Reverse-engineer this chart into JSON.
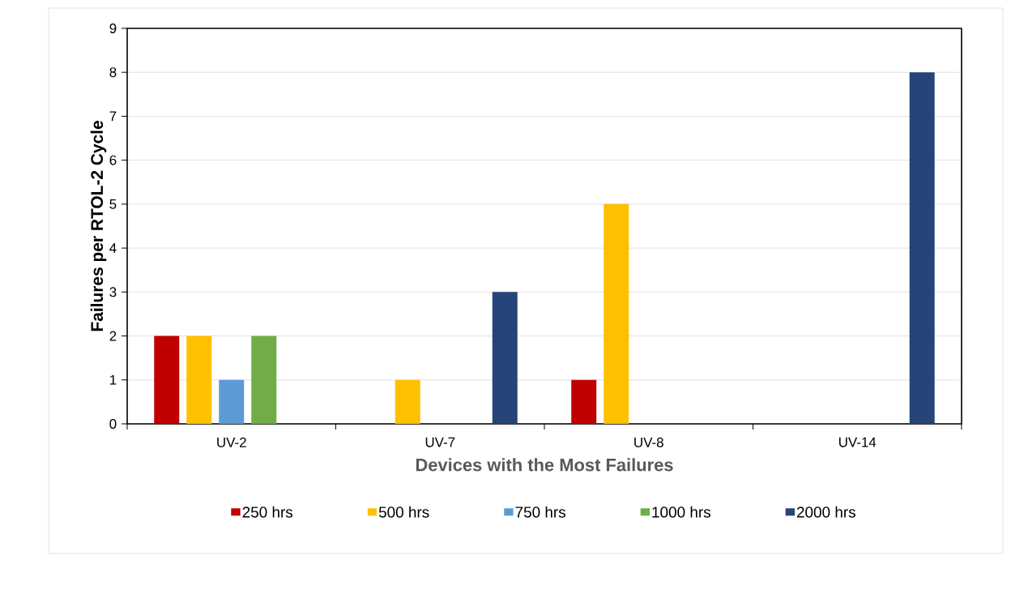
{
  "chart_data": {
    "type": "bar",
    "xlabel": "Devices with the Most Failures",
    "ylabel": "Failures per RTOL-2 Cycle",
    "categories": [
      "UV-2",
      "UV-7",
      "UV-8",
      "UV-14"
    ],
    "series": [
      {
        "name": "250 hrs",
        "color": "#c00000",
        "values": [
          2,
          0,
          1,
          0
        ]
      },
      {
        "name": "500 hrs",
        "color": "#ffc000",
        "values": [
          2,
          1,
          5,
          0
        ]
      },
      {
        "name": "750 hrs",
        "color": "#5b9bd5",
        "values": [
          1,
          0,
          0,
          0
        ]
      },
      {
        "name": "1000 hrs",
        "color": "#70ad47",
        "values": [
          2,
          0,
          0,
          0
        ]
      },
      {
        "name": "2000 hrs",
        "color": "#264478",
        "values": [
          0,
          3,
          0,
          8
        ]
      }
    ],
    "ylim": [
      0,
      9
    ],
    "yticks": [
      0,
      1,
      2,
      3,
      4,
      5,
      6,
      7,
      8,
      9
    ],
    "grid": "y",
    "legend": "bottom"
  }
}
